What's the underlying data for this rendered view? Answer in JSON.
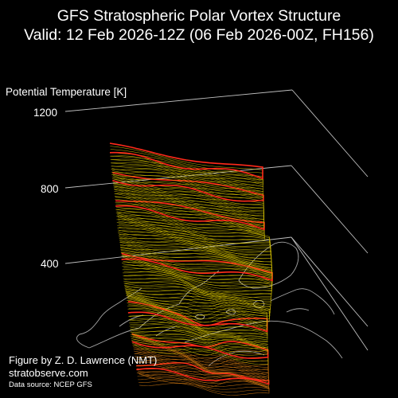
{
  "title": {
    "line1": "GFS Stratospheric Polar Vortex Structure",
    "line2": "Valid: 12 Feb 2026-12Z  (06 Feb 2026-00Z, FH156)"
  },
  "axis": {
    "zlabel": "Potential Temperature [K]",
    "ticks": [
      "1200",
      "800",
      "400"
    ]
  },
  "credits": {
    "figure": "Figure by Z. D. Lawrence (NMT)",
    "site": "stratobserve.com",
    "source": "Data source: NCEP GFS"
  },
  "colors": {
    "background": "#000000",
    "axis_lines": "#bfbfbf",
    "coastline": "#a6a6a6",
    "isentrope_minor": "#d8c400",
    "isentrope_major": "#ff2a1a",
    "isentrope_low": "#d47a10"
  },
  "chart_data": {
    "type": "3d-isosurface",
    "z_axis": {
      "label": "Potential Temperature [K]",
      "ticks": [
        400,
        800,
        1200
      ]
    },
    "layers": {
      "z_min": 350,
      "z_max": 1200,
      "highlight_every": 100
    }
  }
}
